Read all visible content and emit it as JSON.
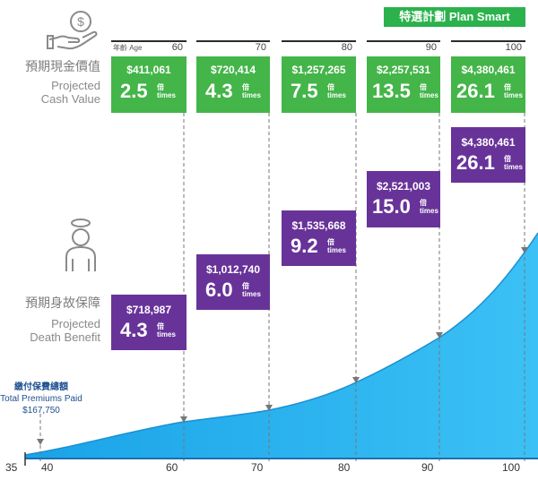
{
  "header": {
    "plan_badge": "特選計劃 Plan Smart"
  },
  "age_header": {
    "label": "年齡 Age",
    "ages": [
      "60",
      "70",
      "80",
      "90",
      "100"
    ]
  },
  "side_labels": {
    "cash_value_zh": "預期現金價值",
    "cash_value_en_1": "Projected",
    "cash_value_en_2": "Cash Value",
    "death_benefit_zh": "預期身故保障",
    "death_benefit_en_1": "Projected",
    "death_benefit_en_2": "Death Benefit"
  },
  "icons": [
    "hand-dollar-icon",
    "person-halo-icon"
  ],
  "colors": {
    "cash_value": "#44b549",
    "death_benefit": "#683399",
    "curve": "#29b6ef",
    "badge": "#2bb24c"
  },
  "cash_value_boxes": [
    {
      "age": "60",
      "amount": "$411,061",
      "multiple": "2.5",
      "bei": "倍",
      "times": "times"
    },
    {
      "age": "70",
      "amount": "$720,414",
      "multiple": "4.3",
      "bei": "倍",
      "times": "times"
    },
    {
      "age": "80",
      "amount": "$1,257,265",
      "multiple": "7.5",
      "bei": "倍",
      "times": "times"
    },
    {
      "age": "90",
      "amount": "$2,257,531",
      "multiple": "13.5",
      "bei": "倍",
      "times": "times"
    },
    {
      "age": "100",
      "amount": "$4,380,461",
      "multiple": "26.1",
      "bei": "倍",
      "times": "times"
    }
  ],
  "death_benefit_boxes": [
    {
      "age": "60",
      "amount": "$718,987",
      "multiple": "4.3",
      "bei": "倍",
      "times": "times"
    },
    {
      "age": "70",
      "amount": "$1,012,740",
      "multiple": "6.0",
      "bei": "倍",
      "times": "times"
    },
    {
      "age": "80",
      "amount": "$1,535,668",
      "multiple": "9.2",
      "bei": "倍",
      "times": "times"
    },
    {
      "age": "90",
      "amount": "$2,521,003",
      "multiple": "15.0",
      "bei": "倍",
      "times": "times"
    },
    {
      "age": "100",
      "amount": "$4,380,461",
      "multiple": "26.1",
      "bei": "倍",
      "times": "times"
    }
  ],
  "premium_label": {
    "zh": "繳付保費總額",
    "en": "Total Premiums Paid",
    "amount": "$167,750"
  },
  "x_axis": {
    "ticks": [
      "35",
      "40",
      "60",
      "70",
      "80",
      "90",
      "100"
    ]
  },
  "chart_data": {
    "type": "area",
    "x": [
      35,
      40,
      60,
      70,
      80,
      90,
      100
    ],
    "xlabel": "",
    "ylabel": "",
    "series": [
      {
        "name": "預期現金價值 Projected Cash Value",
        "values": [
          null,
          null,
          411061,
          720414,
          1257265,
          2257531,
          4380461
        ]
      },
      {
        "name": "預期身故保障 Projected Death Benefit",
        "values": [
          null,
          null,
          718987,
          1012740,
          1535668,
          2521003,
          4380461
        ]
      }
    ],
    "premiums_paid": 167750,
    "grid": false
  }
}
